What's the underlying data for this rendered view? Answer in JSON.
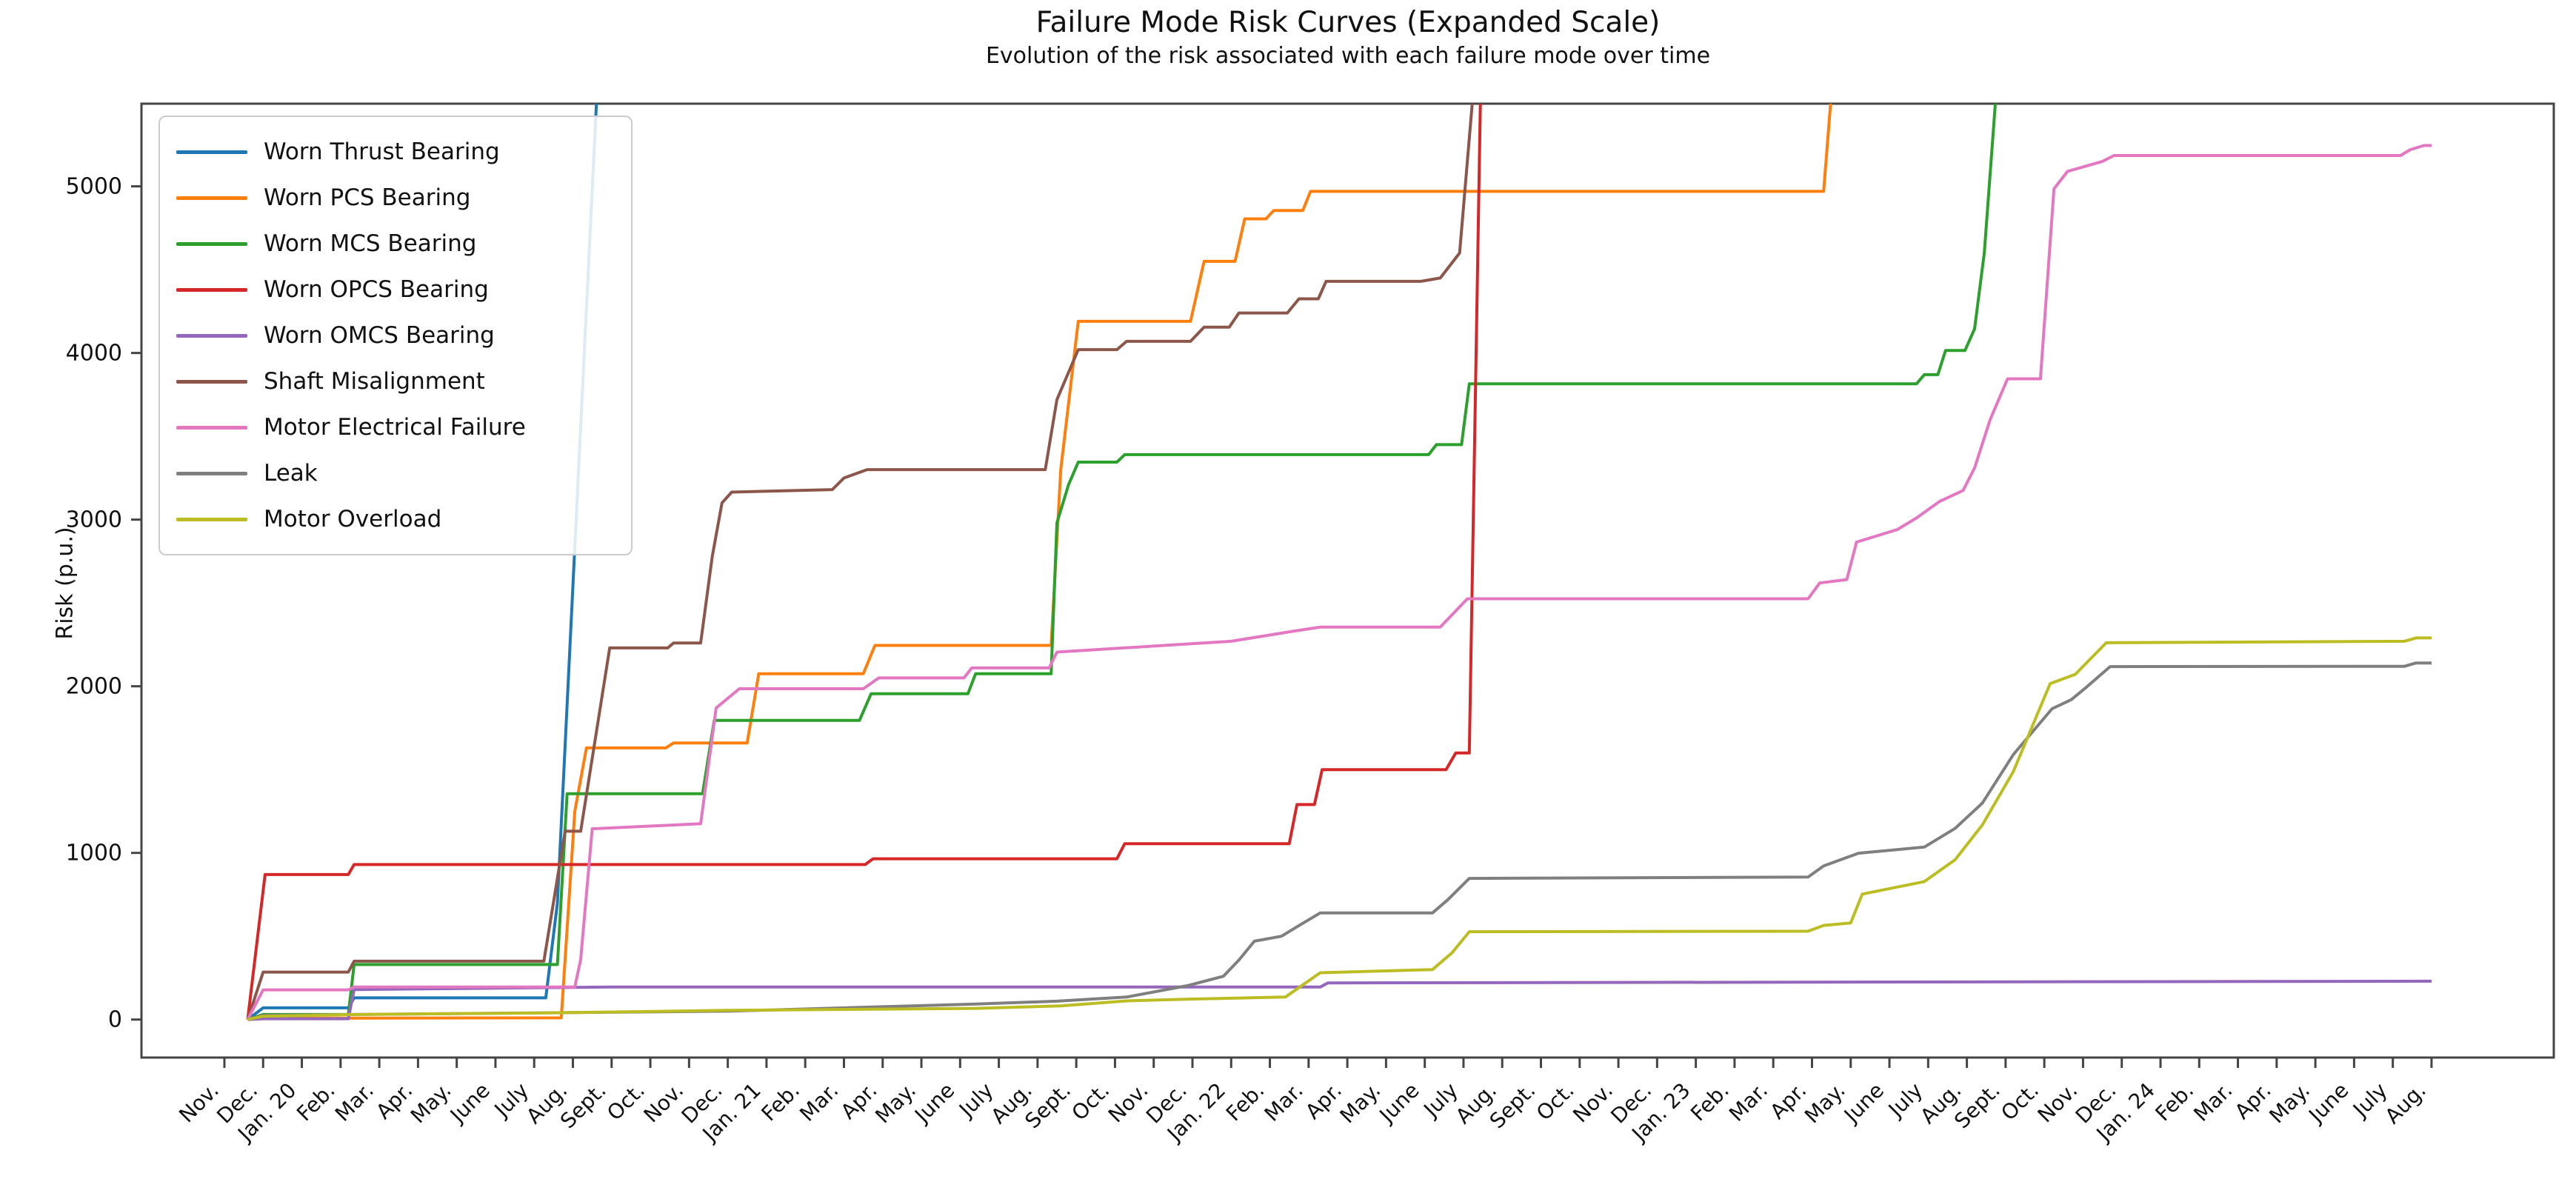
{
  "title": "Failure Mode Risk Curves (Expanded Scale)",
  "subtitle": "Evolution of the risk associated with each failure mode over time",
  "ylabel": "Risk (p.u.)",
  "legend": {
    "items": [
      {
        "label": "Worn Thrust Bearing",
        "color": "#1f77b4"
      },
      {
        "label": "Worn PCS Bearing",
        "color": "#ff7f0e"
      },
      {
        "label": "Worn MCS Bearing",
        "color": "#2ca02c"
      },
      {
        "label": "Worn OPCS Bearing",
        "color": "#d62728"
      },
      {
        "label": "Worn OMCS Bearing",
        "color": "#9467bd"
      },
      {
        "label": "Shaft Misalignment",
        "color": "#8c564b"
      },
      {
        "label": "Motor Electrical Failure",
        "color": "#e377c2"
      },
      {
        "label": "Leak",
        "color": "#7f7f7f"
      },
      {
        "label": "Motor Overload",
        "color": "#bcbd22"
      }
    ]
  },
  "chart_data": {
    "type": "line",
    "title": "Failure Mode Risk Curves (Expanded Scale)",
    "subtitle": "Evolution of the risk associated with each failure mode over time",
    "xlabel": "",
    "ylabel": "Risk (p.u.)",
    "grid": false,
    "legend_position": "upper left",
    "x_unit": "months since Nov 2019 (0 = Nov. 2019, 57 = Aug. 2024)",
    "x_tick_labels": [
      "Nov.",
      "Dec.",
      "Jan. 20",
      "Feb.",
      "Mar.",
      "Apr.",
      "May.",
      "June",
      "July",
      "Aug.",
      "Sept.",
      "Oct.",
      "Nov.",
      "Dec.",
      "Jan. 21",
      "Feb.",
      "Mar.",
      "Apr.",
      "May.",
      "June",
      "July",
      "Aug.",
      "Sept.",
      "Oct.",
      "Nov.",
      "Dec.",
      "Jan. 22",
      "Feb.",
      "Mar.",
      "Apr.",
      "May.",
      "June",
      "July",
      "Aug.",
      "Sept.",
      "Oct.",
      "Nov.",
      "Dec.",
      "Jan. 23",
      "Feb.",
      "Mar.",
      "Apr.",
      "May.",
      "June",
      "July",
      "Aug.",
      "Sept.",
      "Oct.",
      "Nov.",
      "Dec.",
      "Jan. 24",
      "Feb.",
      "Mar.",
      "Apr.",
      "May.",
      "June",
      "July",
      "Aug."
    ],
    "y_ticks": [
      0,
      1000,
      2000,
      3000,
      4000,
      5000
    ],
    "ylim": [
      -228,
      5496
    ],
    "x_range_months": [
      -2.142,
      60.157
    ],
    "tick_label_rotation_deg": 45,
    "series": [
      {
        "name": "Worn Thrust Bearing",
        "color": "#1f77b4",
        "clipped_top": true,
        "points": [
          [
            0.6,
            0
          ],
          [
            1,
            70
          ],
          [
            3.2,
            70
          ],
          [
            3.35,
            130
          ],
          [
            8.3,
            130
          ],
          [
            8.6,
            700
          ],
          [
            9,
            2600
          ],
          [
            9.65,
            5700
          ]
        ]
      },
      {
        "name": "Worn PCS Bearing",
        "color": "#ff7f0e",
        "clipped_top": true,
        "points": [
          [
            0.6,
            0
          ],
          [
            1,
            8
          ],
          [
            8.7,
            10
          ],
          [
            9.05,
            1250
          ],
          [
            9.35,
            1630
          ],
          [
            11.4,
            1630
          ],
          [
            11.6,
            1660
          ],
          [
            13.5,
            1660
          ],
          [
            13.8,
            2075
          ],
          [
            16.5,
            2075
          ],
          [
            16.8,
            2245
          ],
          [
            21.35,
            2245
          ],
          [
            21.6,
            3300
          ],
          [
            22.05,
            4190
          ],
          [
            24.95,
            4190
          ],
          [
            25.3,
            4550
          ],
          [
            26.1,
            4550
          ],
          [
            26.35,
            4805
          ],
          [
            26.9,
            4805
          ],
          [
            27.1,
            4855
          ],
          [
            27.85,
            4855
          ],
          [
            28.05,
            4970
          ],
          [
            41.3,
            4970
          ],
          [
            41.55,
            5700
          ]
        ]
      },
      {
        "name": "Worn MCS Bearing",
        "color": "#2ca02c",
        "clipped_top": true,
        "points": [
          [
            0.6,
            0
          ],
          [
            1,
            30
          ],
          [
            3.2,
            30
          ],
          [
            3.35,
            330
          ],
          [
            8.6,
            330
          ],
          [
            8.85,
            1355
          ],
          [
            12.35,
            1355
          ],
          [
            12.65,
            1795
          ],
          [
            16.4,
            1795
          ],
          [
            16.7,
            1955
          ],
          [
            19.2,
            1955
          ],
          [
            19.4,
            2075
          ],
          [
            21.35,
            2075
          ],
          [
            21.5,
            2980
          ],
          [
            21.8,
            3210
          ],
          [
            22.05,
            3345
          ],
          [
            23.05,
            3345
          ],
          [
            23.25,
            3390
          ],
          [
            31.1,
            3390
          ],
          [
            31.3,
            3450
          ],
          [
            31.95,
            3450
          ],
          [
            32.15,
            3815
          ],
          [
            43.7,
            3815
          ],
          [
            43.9,
            3870
          ],
          [
            44.25,
            3870
          ],
          [
            44.45,
            4015
          ],
          [
            44.95,
            4015
          ],
          [
            45.2,
            4145
          ],
          [
            45.45,
            4600
          ],
          [
            45.8,
            5700
          ]
        ]
      },
      {
        "name": "Worn OPCS Bearing",
        "color": "#d62728",
        "clipped_top": true,
        "points": [
          [
            0.6,
            0
          ],
          [
            1.05,
            870
          ],
          [
            3.2,
            870
          ],
          [
            3.35,
            930
          ],
          [
            16.55,
            930
          ],
          [
            16.75,
            965
          ],
          [
            23.05,
            965
          ],
          [
            23.25,
            1055
          ],
          [
            27.5,
            1055
          ],
          [
            27.7,
            1290
          ],
          [
            28.15,
            1290
          ],
          [
            28.35,
            1500
          ],
          [
            31.55,
            1500
          ],
          [
            31.8,
            1600
          ],
          [
            32.15,
            1600
          ],
          [
            32.45,
            5700
          ]
        ]
      },
      {
        "name": "Worn OMCS Bearing",
        "color": "#9467bd",
        "clipped_top": false,
        "points": [
          [
            0.6,
            0
          ],
          [
            1,
            5
          ],
          [
            3.2,
            5
          ],
          [
            3.35,
            180
          ],
          [
            10,
            195
          ],
          [
            28.3,
            195
          ],
          [
            28.5,
            220
          ],
          [
            57,
            230
          ]
        ]
      },
      {
        "name": "Shaft Misalignment",
        "color": "#8c564b",
        "clipped_top": true,
        "points": [
          [
            0.6,
            0
          ],
          [
            1,
            285
          ],
          [
            3.2,
            285
          ],
          [
            3.35,
            350
          ],
          [
            8.25,
            350
          ],
          [
            8.8,
            1130
          ],
          [
            9.2,
            1130
          ],
          [
            9.95,
            2230
          ],
          [
            11.45,
            2230
          ],
          [
            11.6,
            2260
          ],
          [
            12.3,
            2260
          ],
          [
            12.6,
            2780
          ],
          [
            12.85,
            3100
          ],
          [
            13.1,
            3165
          ],
          [
            15.7,
            3180
          ],
          [
            16,
            3250
          ],
          [
            16.6,
            3300
          ],
          [
            21.2,
            3300
          ],
          [
            21.5,
            3720
          ],
          [
            22.05,
            4020
          ],
          [
            23.05,
            4020
          ],
          [
            23.3,
            4070
          ],
          [
            24.95,
            4070
          ],
          [
            25.3,
            4155
          ],
          [
            25.95,
            4155
          ],
          [
            26.2,
            4240
          ],
          [
            27.45,
            4240
          ],
          [
            27.75,
            4325
          ],
          [
            28.25,
            4325
          ],
          [
            28.45,
            4430
          ],
          [
            30.9,
            4430
          ],
          [
            31.4,
            4450
          ],
          [
            31.9,
            4600
          ],
          [
            32.3,
            5700
          ]
        ]
      },
      {
        "name": "Motor Electrical Failure",
        "color": "#e377c2",
        "clipped_top": false,
        "points": [
          [
            0.6,
            0
          ],
          [
            1,
            178
          ],
          [
            3.2,
            178
          ],
          [
            3.35,
            195
          ],
          [
            9.05,
            195
          ],
          [
            9.2,
            360
          ],
          [
            9.5,
            1145
          ],
          [
            12.3,
            1175
          ],
          [
            12.7,
            1870
          ],
          [
            13.3,
            1985
          ],
          [
            16.5,
            1985
          ],
          [
            16.9,
            2050
          ],
          [
            19.1,
            2050
          ],
          [
            19.3,
            2110
          ],
          [
            21.3,
            2110
          ],
          [
            21.5,
            2205
          ],
          [
            26,
            2270
          ],
          [
            27.6,
            2330
          ],
          [
            28.3,
            2355
          ],
          [
            31.4,
            2355
          ],
          [
            32.1,
            2525
          ],
          [
            40.9,
            2525
          ],
          [
            41.2,
            2620
          ],
          [
            41.9,
            2640
          ],
          [
            42.15,
            2865
          ],
          [
            43.2,
            2940
          ],
          [
            43.7,
            3010
          ],
          [
            44.3,
            3110
          ],
          [
            44.9,
            3175
          ],
          [
            45.2,
            3310
          ],
          [
            45.6,
            3600
          ],
          [
            46.05,
            3845
          ],
          [
            46.9,
            3845
          ],
          [
            47.25,
            4985
          ],
          [
            47.6,
            5090
          ],
          [
            48.5,
            5150
          ],
          [
            48.8,
            5185
          ],
          [
            56.2,
            5185
          ],
          [
            56.45,
            5220
          ],
          [
            56.8,
            5245
          ],
          [
            57,
            5245
          ]
        ]
      },
      {
        "name": "Leak",
        "color": "#7f7f7f",
        "clipped_top": false,
        "points": [
          [
            0.6,
            0
          ],
          [
            1,
            25
          ],
          [
            3.35,
            30
          ],
          [
            13,
            50
          ],
          [
            19.4,
            93
          ],
          [
            21.5,
            110
          ],
          [
            23.3,
            135
          ],
          [
            24.9,
            205
          ],
          [
            25.8,
            260
          ],
          [
            26.2,
            357
          ],
          [
            26.6,
            470
          ],
          [
            27.3,
            500
          ],
          [
            27.75,
            564
          ],
          [
            28.3,
            640
          ],
          [
            31.2,
            640
          ],
          [
            31.6,
            720
          ],
          [
            32.15,
            847
          ],
          [
            40.9,
            855
          ],
          [
            41.3,
            922
          ],
          [
            42.2,
            998
          ],
          [
            43.9,
            1035
          ],
          [
            44.7,
            1148
          ],
          [
            45.4,
            1299
          ],
          [
            46.2,
            1590
          ],
          [
            47.2,
            1865
          ],
          [
            47.7,
            1920
          ],
          [
            48.1,
            1997
          ],
          [
            48.7,
            2118
          ],
          [
            56.3,
            2120
          ],
          [
            56.6,
            2140
          ],
          [
            57,
            2140
          ]
        ]
      },
      {
        "name": "Motor Overload",
        "color": "#bcbd22",
        "clipped_top": false,
        "points": [
          [
            0.6,
            0
          ],
          [
            1,
            20
          ],
          [
            3.35,
            30
          ],
          [
            8.3,
            40
          ],
          [
            13,
            55
          ],
          [
            19.4,
            67
          ],
          [
            21.6,
            82
          ],
          [
            23.3,
            112
          ],
          [
            25,
            123
          ],
          [
            27.4,
            135
          ],
          [
            27.8,
            200
          ],
          [
            28.3,
            281
          ],
          [
            31.2,
            300
          ],
          [
            31.7,
            400
          ],
          [
            32.15,
            527
          ],
          [
            40.9,
            530
          ],
          [
            41.3,
            565
          ],
          [
            42,
            580
          ],
          [
            42.3,
            753
          ],
          [
            43.9,
            828
          ],
          [
            44.7,
            960
          ],
          [
            45.4,
            1168
          ],
          [
            46.2,
            1488
          ],
          [
            47.15,
            2016
          ],
          [
            47.8,
            2072
          ],
          [
            48.6,
            2261
          ],
          [
            56.3,
            2270
          ],
          [
            56.6,
            2290
          ],
          [
            57,
            2290
          ]
        ]
      }
    ]
  }
}
